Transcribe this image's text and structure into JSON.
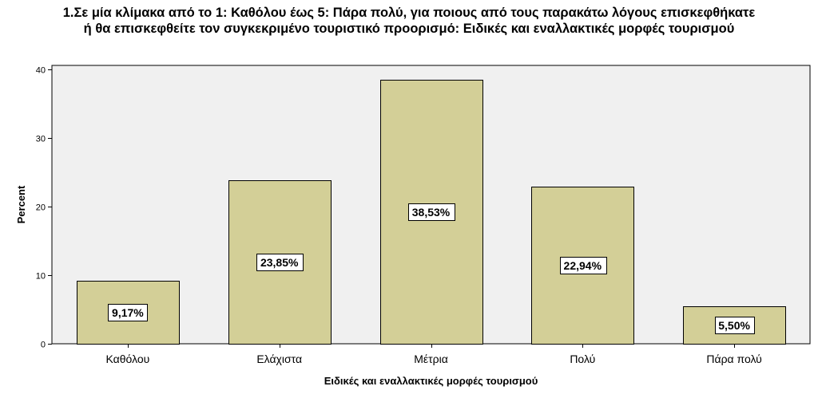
{
  "chart_data": {
    "type": "bar",
    "title_lines": [
      "1.Σε μία κλίμακα από το 1: Καθόλου έως 5: Πάρα πολύ, για ποιους από τους παρακάτω λόγους επισκεφθήκατε",
      "ή θα επισκεφθείτε τον συγκεκριμένο τουριστικό προορισμό: Ειδικές και εναλλακτικές μορφές τουρισμού"
    ],
    "xlabel": "Ειδικές και εναλλακτικές μορφές τουρισμού",
    "ylabel": "Percent",
    "categories": [
      "Καθόλου",
      "Ελάχιστα",
      "Μέτρια",
      "Πολύ",
      "Πάρα πολύ"
    ],
    "values": [
      9.17,
      23.85,
      38.53,
      22.94,
      5.5
    ],
    "data_labels": [
      "9,17%",
      "23,85%",
      "38,53%",
      "22,94%",
      "5,50%"
    ],
    "ylim": [
      0,
      40.6
    ],
    "yticks": [
      0,
      10,
      20,
      30,
      40
    ],
    "grid": false,
    "colors": {
      "bar_fill": "#d3cf97",
      "bar_stroke": "#000000",
      "plot_background": "#f0f0f0",
      "plot_border": "#000000"
    }
  }
}
